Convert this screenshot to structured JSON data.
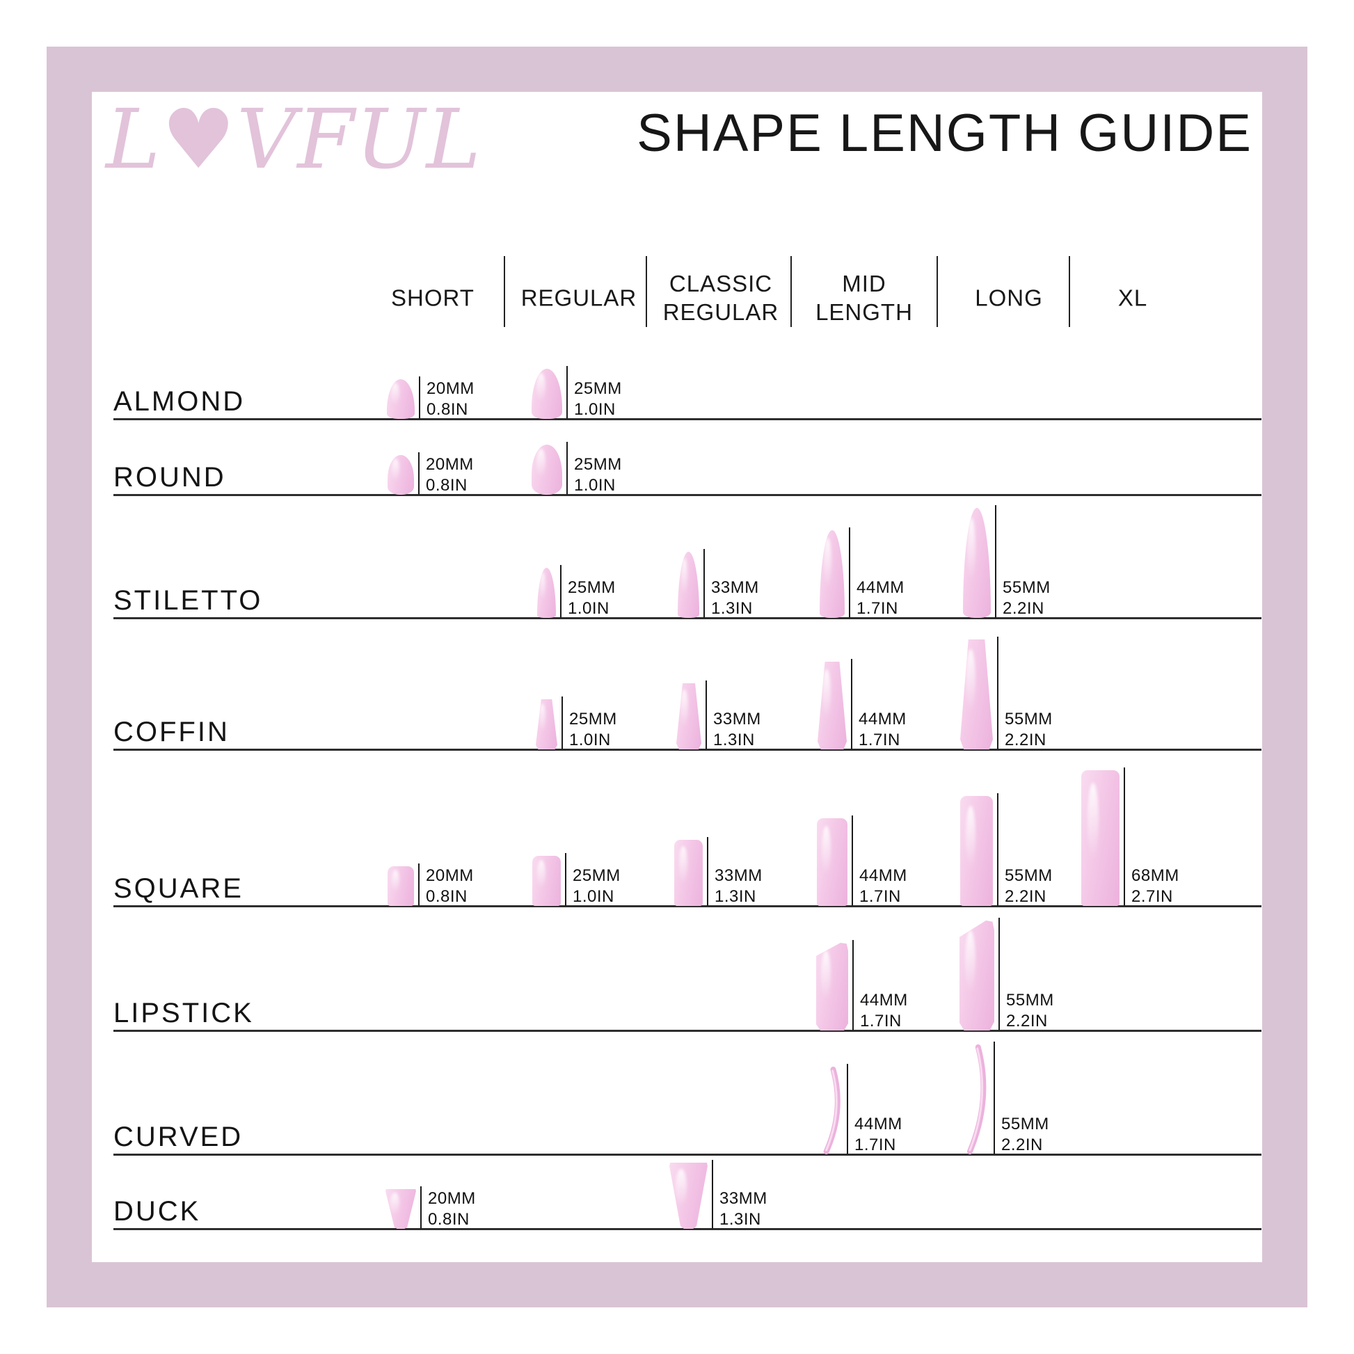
{
  "brand": {
    "name": "LOVFUL",
    "logo_display": "L♥VFUL"
  },
  "header": {
    "title": "SHAPE LENGTH GUIDE"
  },
  "columns": [
    {
      "label": "SHORT"
    },
    {
      "label": "REGULAR"
    },
    {
      "label": "CLASSIC REGULAR"
    },
    {
      "label": "MID LENGTH"
    },
    {
      "label": "LONG"
    },
    {
      "label": "XL"
    }
  ],
  "rows": [
    {
      "id": "almond",
      "label": "ALMOND",
      "cells": [
        {
          "col": 0,
          "mm": 20,
          "mm_label": "20MM",
          "in_label": "0.8IN"
        },
        {
          "col": 1,
          "mm": 25,
          "mm_label": "25MM",
          "in_label": "1.0IN"
        }
      ]
    },
    {
      "id": "round",
      "label": "ROUND",
      "cells": [
        {
          "col": 0,
          "mm": 20,
          "mm_label": "20MM",
          "in_label": "0.8IN"
        },
        {
          "col": 1,
          "mm": 25,
          "mm_label": "25MM",
          "in_label": "1.0IN"
        }
      ]
    },
    {
      "id": "stiletto",
      "label": "STILETTO",
      "cells": [
        {
          "col": 1,
          "mm": 25,
          "mm_label": "25MM",
          "in_label": "1.0IN"
        },
        {
          "col": 2,
          "mm": 33,
          "mm_label": "33MM",
          "in_label": "1.3IN"
        },
        {
          "col": 3,
          "mm": 44,
          "mm_label": "44MM",
          "in_label": "1.7IN"
        },
        {
          "col": 4,
          "mm": 55,
          "mm_label": "55MM",
          "in_label": "2.2IN"
        }
      ]
    },
    {
      "id": "coffin",
      "label": "COFFIN",
      "cells": [
        {
          "col": 1,
          "mm": 25,
          "mm_label": "25MM",
          "in_label": "1.0IN"
        },
        {
          "col": 2,
          "mm": 33,
          "mm_label": "33MM",
          "in_label": "1.3IN"
        },
        {
          "col": 3,
          "mm": 44,
          "mm_label": "44MM",
          "in_label": "1.7IN"
        },
        {
          "col": 4,
          "mm": 55,
          "mm_label": "55MM",
          "in_label": "2.2IN"
        }
      ]
    },
    {
      "id": "square",
      "label": "SQUARE",
      "cells": [
        {
          "col": 0,
          "mm": 20,
          "mm_label": "20MM",
          "in_label": "0.8IN"
        },
        {
          "col": 1,
          "mm": 25,
          "mm_label": "25MM",
          "in_label": "1.0IN"
        },
        {
          "col": 2,
          "mm": 33,
          "mm_label": "33MM",
          "in_label": "1.3IN"
        },
        {
          "col": 3,
          "mm": 44,
          "mm_label": "44MM",
          "in_label": "1.7IN"
        },
        {
          "col": 4,
          "mm": 55,
          "mm_label": "55MM",
          "in_label": "2.2IN"
        },
        {
          "col": 5,
          "mm": 68,
          "mm_label": "68MM",
          "in_label": "2.7IN"
        }
      ]
    },
    {
      "id": "lipstick",
      "label": "LIPSTICK",
      "cells": [
        {
          "col": 3,
          "mm": 44,
          "mm_label": "44MM",
          "in_label": "1.7IN"
        },
        {
          "col": 4,
          "mm": 55,
          "mm_label": "55MM",
          "in_label": "2.2IN"
        }
      ]
    },
    {
      "id": "curved",
      "label": "CURVED",
      "cells": [
        {
          "col": 3,
          "mm": 44,
          "mm_label": "44MM",
          "in_label": "1.7IN"
        },
        {
          "col": 4,
          "mm": 55,
          "mm_label": "55MM",
          "in_label": "2.2IN"
        }
      ]
    },
    {
      "id": "duck",
      "label": "DUCK",
      "cells": [
        {
          "col": 0,
          "mm": 20,
          "mm_label": "20MM",
          "in_label": "0.8IN"
        },
        {
          "col": 2,
          "mm": 33,
          "mm_label": "33MM",
          "in_label": "1.3IN"
        }
      ]
    }
  ],
  "colors": {
    "frame": "#d9c4d5",
    "logo": "#e2c3da",
    "nail_light": "#f9dcf0",
    "nail_mid": "#f4c7e7",
    "nail_dark": "#ecb2dd",
    "line": "#1b1b1b",
    "text": "#1c1c1c"
  }
}
